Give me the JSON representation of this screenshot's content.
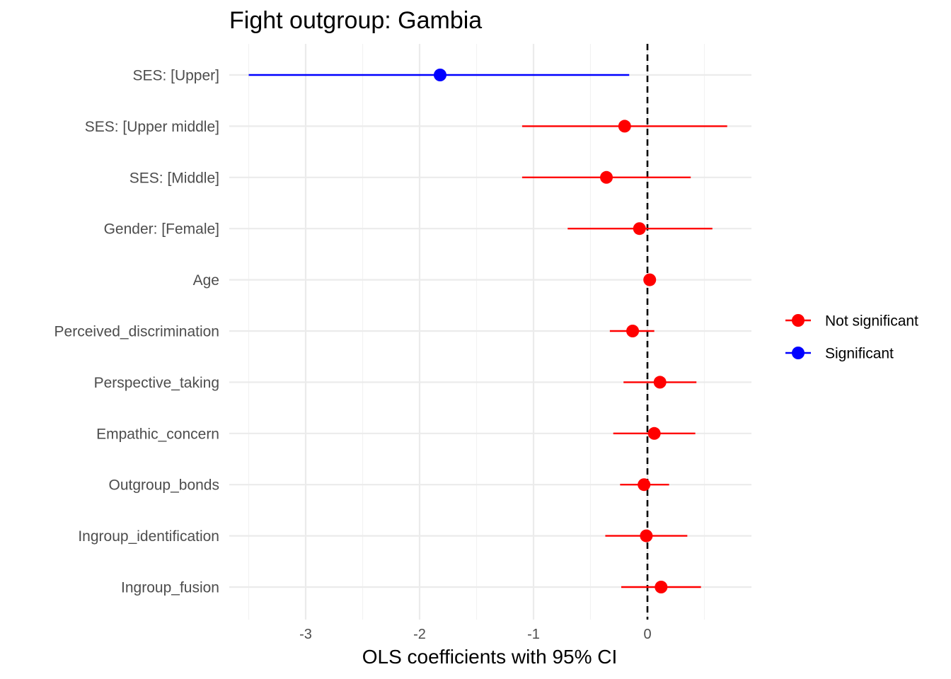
{
  "chart_data": {
    "type": "scatter",
    "subtype": "coefficient-plot",
    "title": "Fight outgroup: Gambia",
    "xlabel": "OLS coefficients with 95% CI",
    "ylabel": "",
    "xlim": [
      -3.7,
      0.9
    ],
    "xticks": [
      -3,
      -2,
      -1,
      0
    ],
    "xtick_labels": [
      "-3",
      "-2",
      "-1",
      "0"
    ],
    "reference_line": 0,
    "grid": true,
    "legend_position": "right",
    "colors": {
      "Not significant": "#ff0000",
      "Significant": "#0000ff"
    },
    "legend": [
      "Not significant",
      "Significant"
    ],
    "terms": [
      {
        "label": "SES:  [Upper]",
        "estimate": -1.82,
        "low": -3.5,
        "high": -0.16,
        "group": "Significant"
      },
      {
        "label": "SES:  [Upper middle]",
        "estimate": -0.2,
        "low": -1.1,
        "high": 0.7,
        "group": "Not significant"
      },
      {
        "label": "SES:  [Middle]",
        "estimate": -0.36,
        "low": -1.1,
        "high": 0.38,
        "group": "Not significant"
      },
      {
        "label": "Gender:  [Female]",
        "estimate": -0.07,
        "low": -0.7,
        "high": 0.57,
        "group": "Not significant"
      },
      {
        "label": "Age",
        "estimate": 0.02,
        "low": 0.0,
        "high": 0.03,
        "group": "Not significant"
      },
      {
        "label": "Perceived_discrimination",
        "estimate": -0.13,
        "low": -0.33,
        "high": 0.06,
        "group": "Not significant"
      },
      {
        "label": "Perspective_taking",
        "estimate": 0.11,
        "low": -0.21,
        "high": 0.43,
        "group": "Not significant"
      },
      {
        "label": "Empathic_concern",
        "estimate": 0.06,
        "low": -0.3,
        "high": 0.42,
        "group": "Not significant"
      },
      {
        "label": "Outgroup_bonds",
        "estimate": -0.03,
        "low": -0.24,
        "high": 0.19,
        "group": "Not significant"
      },
      {
        "label": "Ingroup_identification",
        "estimate": -0.01,
        "low": -0.37,
        "high": 0.35,
        "group": "Not significant"
      },
      {
        "label": "Ingroup_fusion",
        "estimate": 0.12,
        "low": -0.23,
        "high": 0.47,
        "group": "Not significant"
      }
    ]
  }
}
